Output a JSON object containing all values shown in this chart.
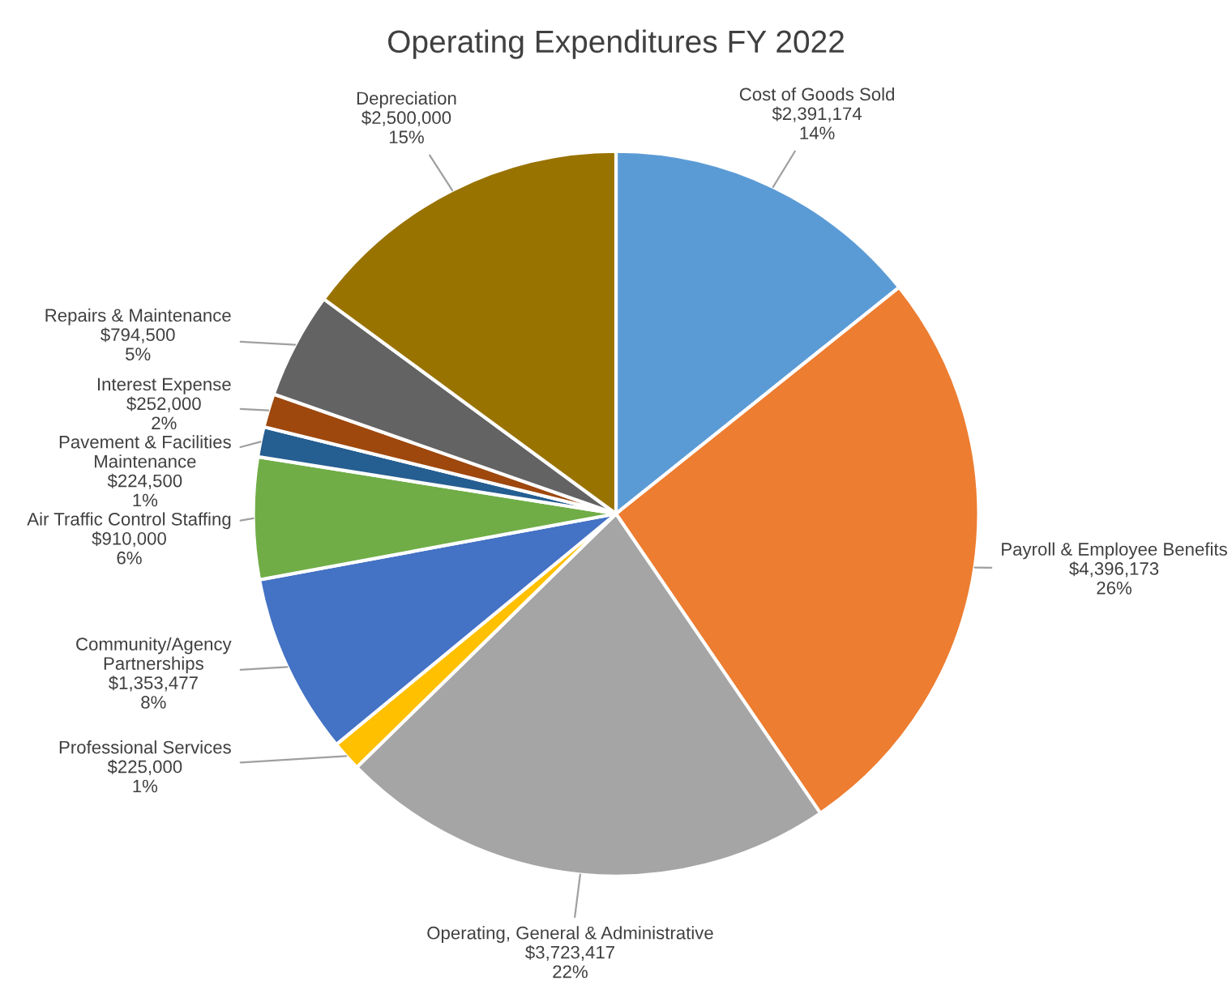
{
  "chart_data": {
    "type": "pie",
    "title": "Operating Expenditures FY 2022",
    "categories": [
      "Cost of Goods Sold",
      "Payroll & Employee Benefits",
      "Operating, General & Administrative",
      "Professional Services",
      "Community/Agency Partnerships",
      "Air Traffic Control Staffing",
      "Pavement & Facilities Maintenance",
      "Interest Expense",
      "Repairs & Maintenance",
      "Depreciation"
    ],
    "values": [
      2391174,
      4396173,
      3723417,
      225000,
      1353477,
      910000,
      224500,
      252000,
      794500,
      2500000
    ],
    "value_labels": [
      "$2,391,174\n14%",
      "$4,396,173\n26%",
      "$3,723,417\n22%",
      "$225,000\n1%",
      "$1,353,477\n8%",
      "$910,000\n6%",
      "$224,500\n1%",
      "$252,000\n2%",
      "$794,500\n5%",
      "$2,500,000\n15%"
    ],
    "colors": [
      "#5b9bd5",
      "#ed7d31",
      "#a5a5a5",
      "#ffc000",
      "#4472c4",
      "#70ad47",
      "#255e91",
      "#9e480e",
      "#636363",
      "#997300"
    ],
    "legend": false
  }
}
